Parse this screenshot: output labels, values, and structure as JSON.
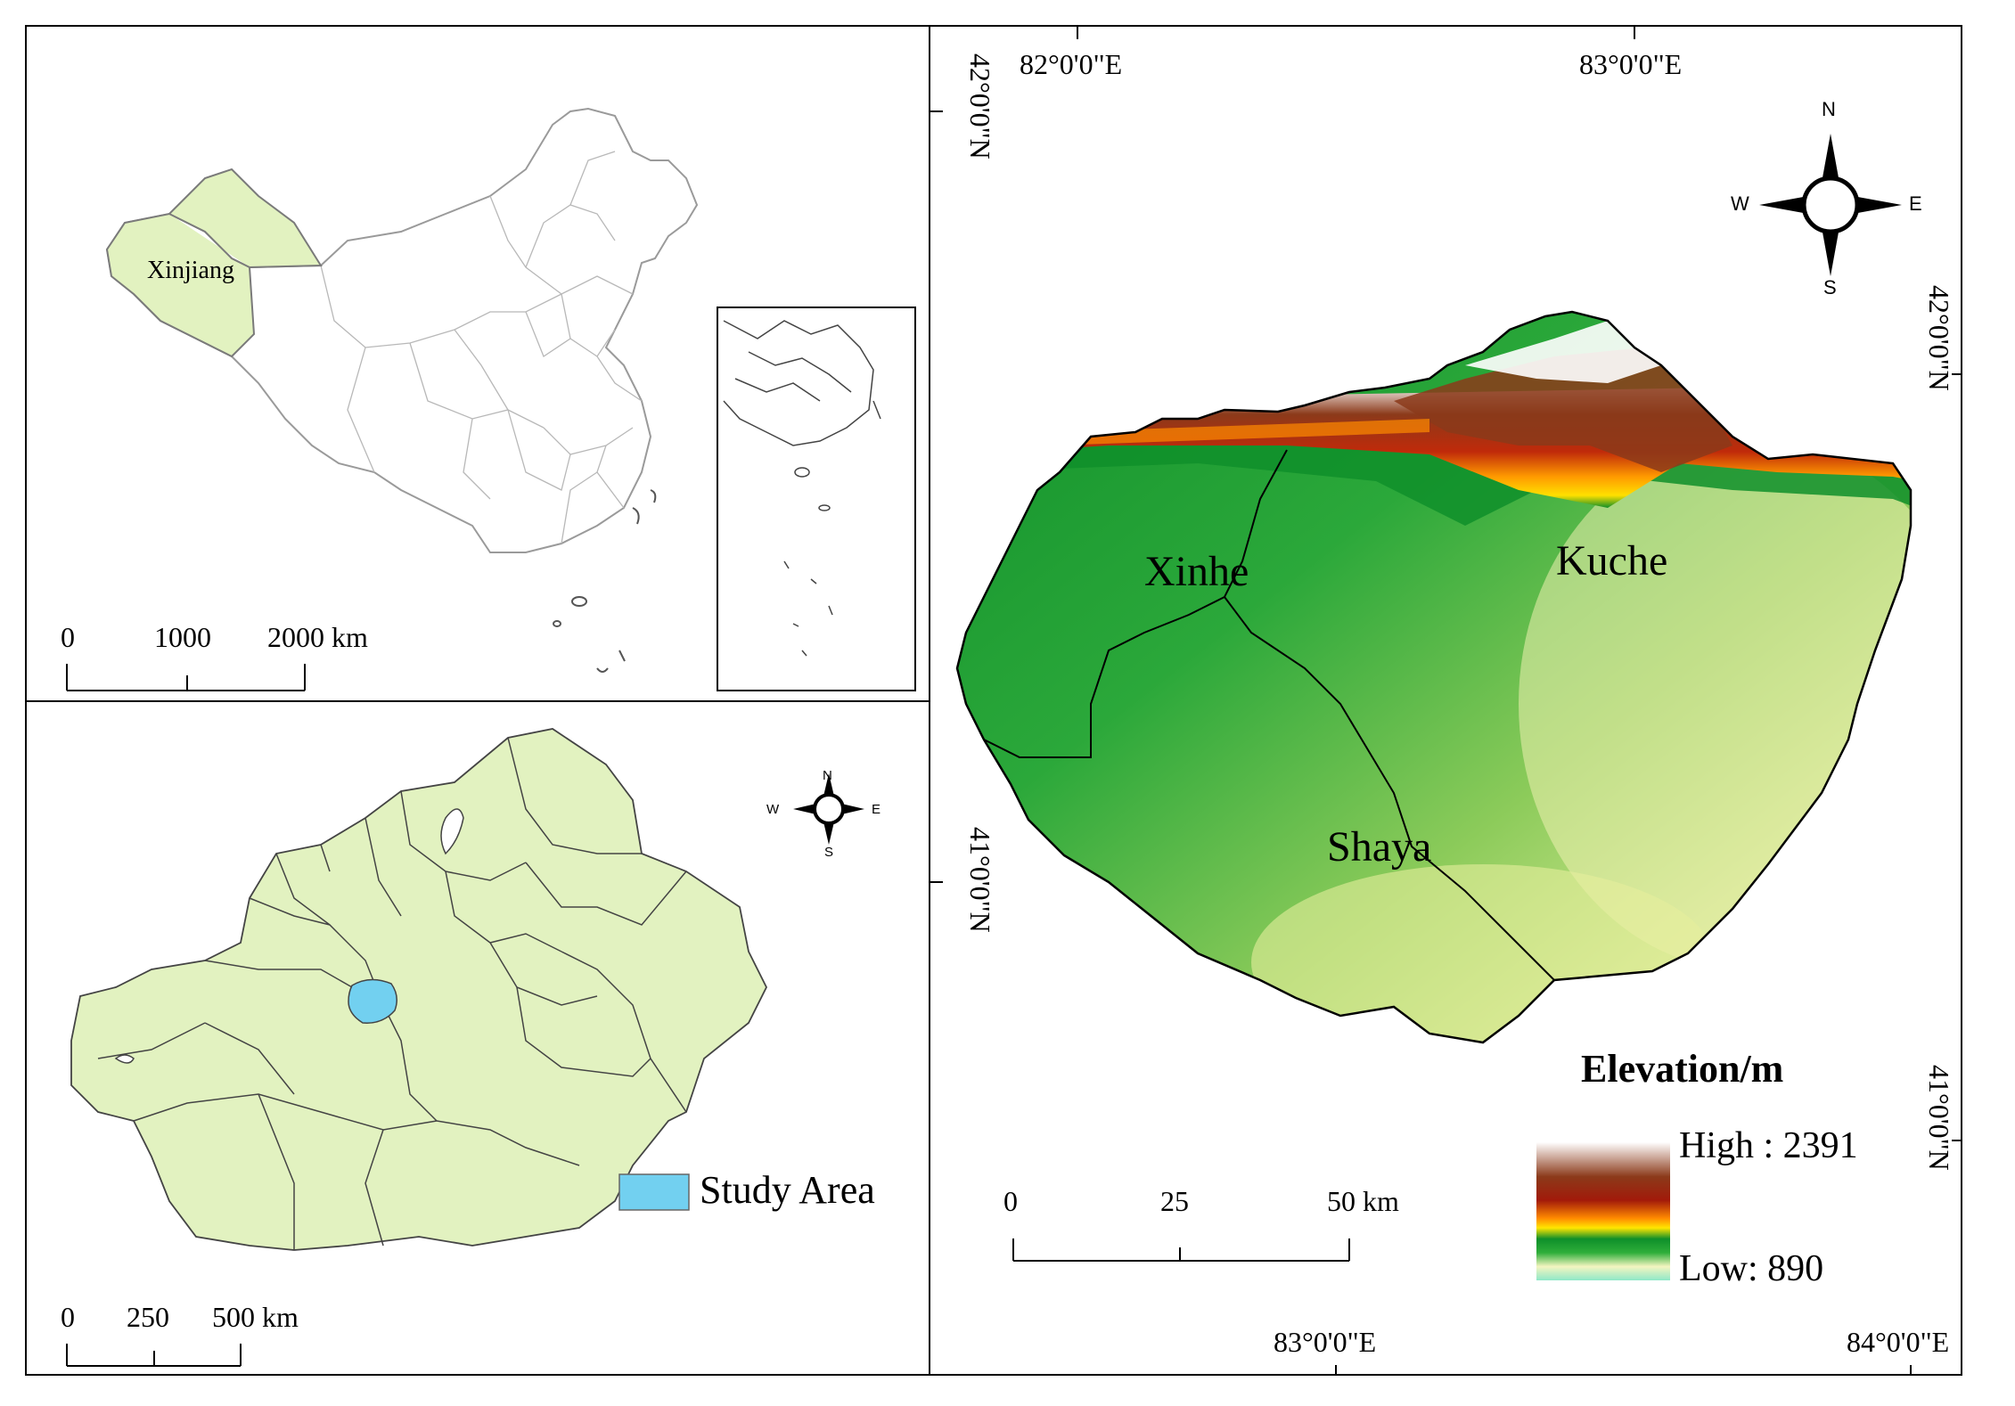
{
  "china_panel": {
    "region_label": "Xinjiang",
    "scalebar": {
      "ticks": [
        "0",
        "1000",
        "2000 km"
      ]
    },
    "colors": {
      "highlight": "#e2f2c0",
      "outline": "#8a8a8a"
    }
  },
  "xinjiang_panel": {
    "scalebar": {
      "ticks": [
        "0",
        "250",
        "500 km"
      ]
    },
    "legend": {
      "swatch_color": "#72d0f0",
      "label": "Study Area"
    },
    "compass": {
      "n": "N",
      "s": "S",
      "e": "E",
      "w": "W"
    },
    "colors": {
      "region_fill": "#e2f2c0",
      "study_area": "#72d0f0"
    }
  },
  "dem_panel": {
    "top_labels": {
      "lon1": "82°0'0\"E",
      "lon2": "83°0'0\"E"
    },
    "bottom_labels": {
      "lon1": "83°0'0\"E",
      "lon2": "84°0'0\"E"
    },
    "left_labels": {
      "lat1": "42°0'0\"N",
      "lat2": "41°0'0\"N"
    },
    "right_labels": {
      "lat1": "42°0'0\"N",
      "lat2": "41°0'0\"N"
    },
    "compass": {
      "n": "N",
      "s": "S",
      "e": "E",
      "w": "W"
    },
    "regions": {
      "xinhe": "Xinhe",
      "kuche": "Kuche",
      "shaya": "Shaya"
    },
    "scalebar": {
      "ticks": [
        "0",
        "25",
        "50 km"
      ]
    },
    "legend": {
      "title": "Elevation/m",
      "high": "High : 2391",
      "low": "Low: 890",
      "ramp_colors": [
        "#ffffff",
        "#8b3a1a",
        "#a21a0a",
        "#ff8a00",
        "#ffe600",
        "#0e8f2a",
        "#2fae3a",
        "#f4f5c0",
        "#8fe8c8"
      ]
    }
  }
}
